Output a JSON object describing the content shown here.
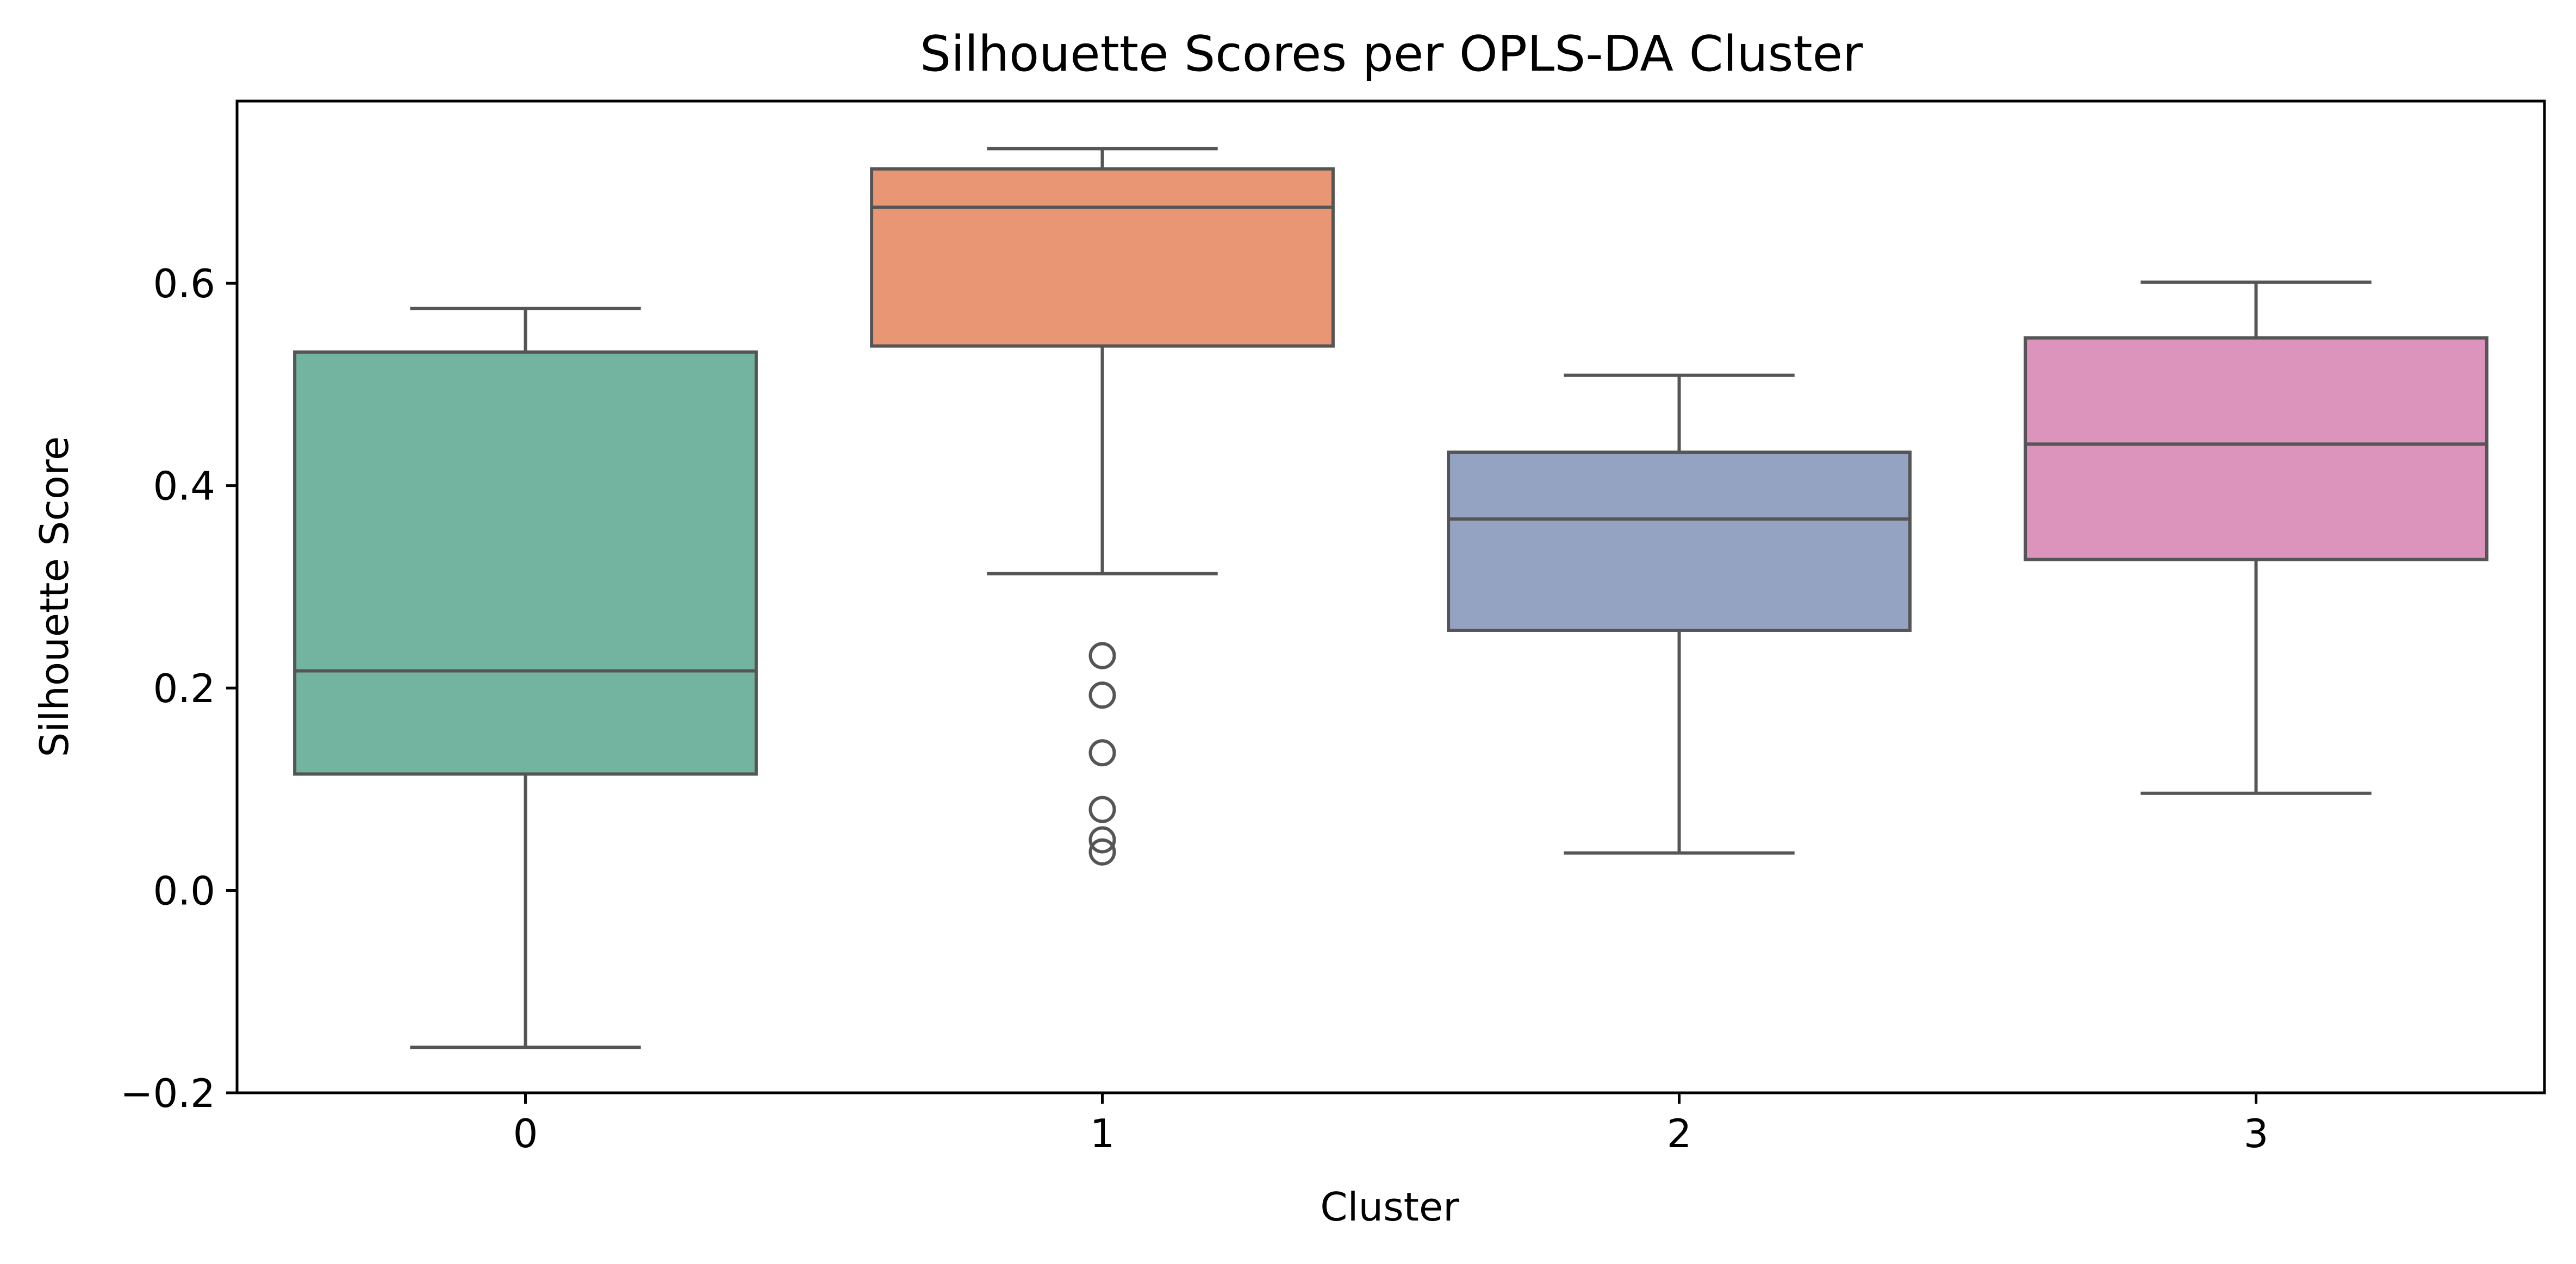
{
  "chart_data": {
    "type": "box",
    "title": "Silhouette Scores per OPLS-DA Cluster",
    "xlabel": "Cluster",
    "ylabel": "Silhouette Score",
    "categories": [
      "0",
      "1",
      "2",
      "3"
    ],
    "ylim": [
      -0.2,
      0.78
    ],
    "yticks": [
      -0.2,
      0.0,
      0.2,
      0.4,
      0.6
    ],
    "ytick_labels": [
      "−0.2",
      "0.0",
      "0.2",
      "0.4",
      "0.6"
    ],
    "grid": false,
    "legend": "none",
    "boxes": [
      {
        "category": "0",
        "whisker_low": -0.155,
        "q1": 0.115,
        "median": 0.217,
        "q3": 0.532,
        "whisker_high": 0.575,
        "outliers": [],
        "color": "#73b4a0"
      },
      {
        "category": "1",
        "whisker_low": 0.313,
        "q1": 0.538,
        "median": 0.675,
        "q3": 0.713,
        "whisker_high": 0.733,
        "outliers": [
          0.232,
          0.193,
          0.136,
          0.08,
          0.05,
          0.038
        ],
        "color": "#e89674"
      },
      {
        "category": "2",
        "whisker_low": 0.037,
        "q1": 0.257,
        "median": 0.367,
        "q3": 0.433,
        "whisker_high": 0.509,
        "outliers": [],
        "color": "#95a3c3"
      },
      {
        "category": "3",
        "whisker_low": 0.096,
        "q1": 0.327,
        "median": 0.441,
        "q3": 0.546,
        "whisker_high": 0.601,
        "outliers": [],
        "color": "#dc94bd"
      }
    ],
    "line_color": "#555555",
    "frame_color": "#000000"
  }
}
